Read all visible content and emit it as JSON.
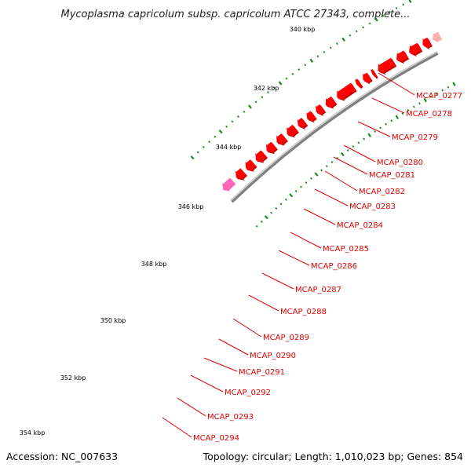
{
  "title": "Mycoplasma capricolum subsp. capricolum ATCC 27343, complete...",
  "accession": "Accession: NC_007633",
  "topology": "Topology: circular; Length: 1,010,023 bp; Genes: 854",
  "colors": {
    "backbone": "#808080",
    "gene": "#ff0000",
    "gene_dark": "#c80000",
    "label": "#e00000",
    "tick": "#1a8a1a"
  },
  "kbp_labels": [
    "340 kbp",
    "342 kbp",
    "344 kbp",
    "346 kbp",
    "348 kbp",
    "350 kbp",
    "352 kbp",
    "354 kbp"
  ],
  "genes": [
    "MCAP_0277",
    "MCAP_0278",
    "MCAP_0279",
    "MCAP_0280",
    "MCAP_0281",
    "MCAP_0282",
    "MCAP_0283",
    "MCAP_0284",
    "MCAP_0285",
    "MCAP_0286",
    "MCAP_0287",
    "MCAP_0288",
    "MCAP_0289",
    "MCAP_0290",
    "MCAP_0291",
    "MCAP_0292",
    "MCAP_0293",
    "MCAP_0294"
  ]
}
